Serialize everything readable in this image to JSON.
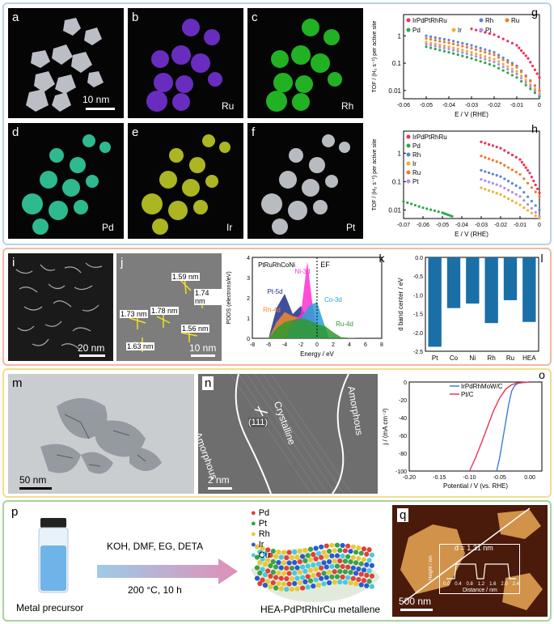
{
  "panels": {
    "a": {
      "letter": "a",
      "scale_bar": "10 nm"
    },
    "b": {
      "letter": "b",
      "element": "Ru"
    },
    "c": {
      "letter": "c",
      "element": "Rh"
    },
    "d": {
      "letter": "d",
      "element": "Pd"
    },
    "e": {
      "letter": "e",
      "element": "Ir"
    },
    "f": {
      "letter": "f",
      "element": "Pt"
    },
    "i": {
      "letter": "i",
      "scale_bar": "20 nm"
    },
    "j": {
      "letter": "j",
      "scale_bar": "10 nm",
      "spacings": [
        "1.59 nm",
        "1.74 nm",
        "1.73 nm",
        "1.78 nm",
        "1.56 nm",
        "1.63 nm"
      ]
    },
    "m": {
      "letter": "m",
      "scale_bar": "50 nm"
    },
    "n": {
      "letter": "n",
      "scale_bar": "2 nm",
      "labels": [
        "Amorphous",
        "(111)",
        "Crystalline",
        "Amorphous"
      ]
    },
    "p": {
      "letter": "p",
      "vial_label": "Metal precursor",
      "reagents": "KOH, DMF, EG, DETA",
      "conditions": "200 °C, 10 h",
      "product_label": "HEA-PdPtRhIrCu metallene",
      "legend": [
        "Pd",
        "Pt",
        "Rh",
        "Ir",
        "Cu"
      ]
    },
    "q": {
      "letter": "q",
      "scale_bar": "500 nm",
      "inset_title": "d = 1.31 nm",
      "inset_ylabel": "Height / nm",
      "inset_xlabel": "Distance / nm",
      "inset_xticks": [
        "0.0",
        "0.4",
        "0.8",
        "1.2",
        "1.6",
        "2.0",
        "2.4"
      ]
    }
  },
  "chart_data": [
    {
      "id": "g",
      "letter": "g",
      "type": "scatter",
      "xlabel": "E / V (RHE)",
      "ylabel": "TOF / (H₂ s⁻¹) per active site",
      "xlim": [
        -0.06,
        0.0
      ],
      "ylim": [
        0.005,
        6
      ],
      "yscale": "log",
      "xticks": [
        "-0.06",
        "-0.05",
        "-0.04",
        "-0.03",
        "-0.02",
        "-0.01",
        "0"
      ],
      "yticks": [
        "0.01",
        "0.1",
        "1"
      ],
      "legend": [
        "IrPdPtRhRu",
        "Rh",
        "Ru",
        "Pd",
        "Ir",
        "Pt"
      ],
      "series": [
        {
          "name": "IrPdPtRhRu",
          "color": "#e8335a",
          "x": [
            -0.03,
            -0.02,
            -0.01,
            -0.005,
            0.0
          ],
          "y": [
            1.8,
            1.1,
            0.45,
            0.15,
            0.03
          ]
        },
        {
          "name": "Rh",
          "color": "#5b86d6",
          "x": [
            -0.05,
            -0.04,
            -0.03,
            -0.02,
            -0.01,
            0.0
          ],
          "y": [
            1.0,
            0.7,
            0.45,
            0.25,
            0.08,
            0.01
          ]
        },
        {
          "name": "Ru",
          "color": "#f07a2a",
          "x": [
            -0.05,
            -0.04,
            -0.03,
            -0.02,
            -0.01,
            0.0
          ],
          "y": [
            0.8,
            0.55,
            0.35,
            0.2,
            0.07,
            0.01
          ]
        },
        {
          "name": "Pd",
          "color": "#2fa84f",
          "x": [
            -0.05,
            -0.04,
            -0.03,
            -0.02,
            -0.01,
            0.0
          ],
          "y": [
            0.4,
            0.25,
            0.15,
            0.08,
            0.03,
            0.006
          ]
        },
        {
          "name": "Ir",
          "color": "#e8b23a",
          "x": [
            -0.05,
            -0.04,
            -0.03,
            -0.02,
            -0.01,
            0.0
          ],
          "y": [
            0.6,
            0.4,
            0.25,
            0.14,
            0.05,
            0.008
          ]
        },
        {
          "name": "Pt",
          "color": "#b48ee0",
          "x": [
            -0.05,
            -0.04,
            -0.03,
            -0.02,
            -0.01,
            0.0
          ],
          "y": [
            0.5,
            0.33,
            0.2,
            0.11,
            0.04,
            0.007
          ]
        }
      ]
    },
    {
      "id": "h",
      "letter": "h",
      "type": "scatter",
      "xlabel": "E / V (RHE)",
      "ylabel": "TOF / (H₂ s⁻¹) per active site",
      "xlim": [
        -0.07,
        0.0
      ],
      "ylim": [
        0.005,
        6
      ],
      "yscale": "log",
      "xticks": [
        "-0.07",
        "-0.06",
        "-0.05",
        "-0.04",
        "-0.03",
        "-0.02",
        "-0.01",
        "0"
      ],
      "yticks": [
        "0.01",
        "0.1",
        "1"
      ],
      "legend": [
        "IrPdPtRhRu",
        "Pd",
        "Rh",
        "Ir",
        "Ru",
        "Pt"
      ],
      "series": [
        {
          "name": "IrPdPtRhRu",
          "color": "#e8335a",
          "x": [
            -0.03,
            -0.02,
            -0.01,
            -0.005,
            0.0
          ],
          "y": [
            2.5,
            1.5,
            0.6,
            0.2,
            0.04
          ]
        },
        {
          "name": "Pd",
          "color": "#2fa84f",
          "x": [
            -0.07,
            -0.06,
            -0.05,
            -0.045
          ],
          "y": [
            0.02,
            0.012,
            0.008,
            0.006
          ]
        },
        {
          "name": "Rh",
          "color": "#5b86d6",
          "x": [
            -0.03,
            -0.02,
            -0.01,
            0.0
          ],
          "y": [
            0.25,
            0.15,
            0.06,
            0.01
          ]
        },
        {
          "name": "Ir",
          "color": "#e8b23a",
          "x": [
            -0.03,
            -0.02,
            -0.01,
            0.0
          ],
          "y": [
            0.06,
            0.035,
            0.015,
            0.005
          ]
        },
        {
          "name": "Ru",
          "color": "#f07a2a",
          "x": [
            -0.03,
            -0.02,
            -0.01,
            0.0
          ],
          "y": [
            0.8,
            0.45,
            0.18,
            0.03
          ]
        },
        {
          "name": "Pt",
          "color": "#b48ee0",
          "x": [
            -0.03,
            -0.02,
            -0.01,
            0.0
          ],
          "y": [
            0.12,
            0.07,
            0.03,
            0.006
          ]
        }
      ]
    },
    {
      "id": "k",
      "letter": "k",
      "type": "area",
      "title": "PtRuRhCoNi",
      "xlabel": "Energy / eV",
      "ylabel": "PDOS (electrons/eV)",
      "xlim": [
        -8,
        8
      ],
      "ylim": [
        0,
        4
      ],
      "xticks": [
        "-8",
        "-6",
        "-4",
        "-2",
        "0",
        "2",
        "4",
        "6",
        "8"
      ],
      "yticks": [
        "0",
        "1",
        "2",
        "3",
        "4"
      ],
      "fermi_label": "EF",
      "series_labels": [
        "Ni-3d",
        "Co-3d",
        "Pt-5d",
        "Rh-4d",
        "Ru-4d"
      ]
    },
    {
      "id": "l",
      "letter": "l",
      "type": "bar",
      "categories": [
        "Pt",
        "Co",
        "Ni",
        "Rh",
        "Ru",
        "HEA"
      ],
      "values": [
        -2.38,
        -1.35,
        -1.23,
        -1.75,
        -1.14,
        -1.72
      ],
      "ylabel": "d band center / eV",
      "ylim": [
        -2.5,
        0.0
      ],
      "yticks": [
        "0.0",
        "-0.5",
        "-1.0",
        "-1.5",
        "-2.0",
        "-2.5"
      ],
      "color": "#1a6fa6"
    },
    {
      "id": "o",
      "letter": "o",
      "type": "line",
      "xlabel": "Potential / V (vs. RHE)",
      "ylabel": "j / (mA cm⁻²)",
      "xlim": [
        -0.2,
        0.02
      ],
      "ylim": [
        -100,
        0
      ],
      "xticks": [
        "-0.20",
        "-0.15",
        "-0.10",
        "-0.05",
        "0.00"
      ],
      "yticks": [
        "0",
        "-20",
        "-40",
        "-60",
        "-80",
        "-100"
      ],
      "series": [
        {
          "name": "IrPdRhMoW/C",
          "color": "#3d7dd8",
          "x": [
            -0.055,
            -0.05,
            -0.045,
            -0.04,
            -0.035,
            -0.03,
            -0.025,
            -0.02,
            -0.01,
            0.0
          ],
          "y": [
            -100,
            -85,
            -65,
            -45,
            -25,
            -10,
            -4,
            -1.5,
            -0.5,
            0
          ]
        },
        {
          "name": "Pt/C",
          "color": "#e8335a",
          "x": [
            -0.1,
            -0.09,
            -0.08,
            -0.07,
            -0.06,
            -0.05,
            -0.04,
            -0.03,
            -0.02,
            0.0
          ],
          "y": [
            -100,
            -85,
            -68,
            -50,
            -32,
            -18,
            -8,
            -3,
            -1,
            0
          ]
        }
      ]
    }
  ]
}
